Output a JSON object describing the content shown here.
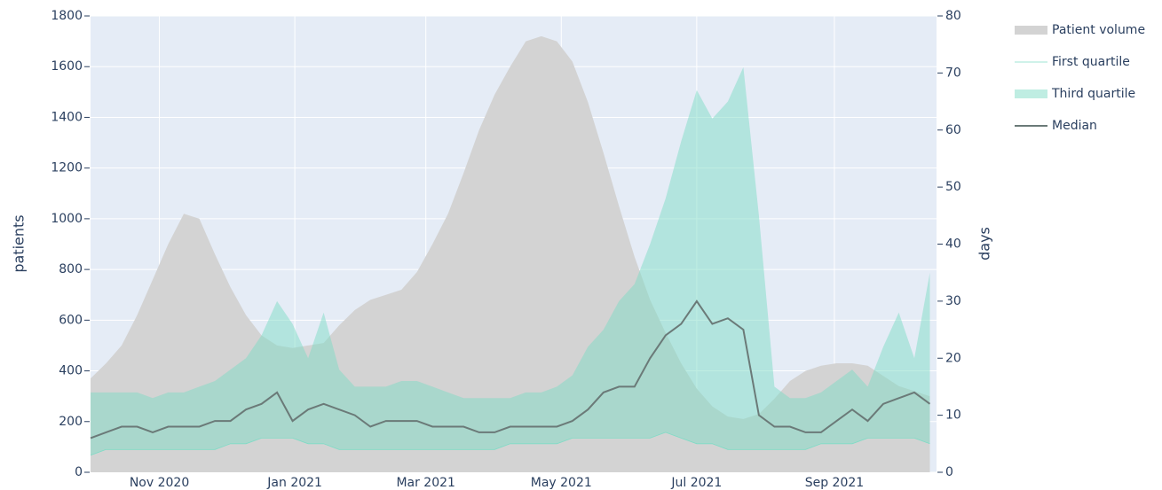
{
  "chart_data": {
    "type": "area",
    "x": [
      "2020-10-01",
      "2020-10-08",
      "2020-10-15",
      "2020-10-22",
      "2020-10-29",
      "2020-11-05",
      "2020-11-12",
      "2020-11-19",
      "2020-11-26",
      "2020-12-03",
      "2020-12-10",
      "2020-12-17",
      "2020-12-24",
      "2020-12-31",
      "2021-01-07",
      "2021-01-14",
      "2021-01-21",
      "2021-01-28",
      "2021-02-04",
      "2021-02-11",
      "2021-02-18",
      "2021-02-25",
      "2021-03-04",
      "2021-03-11",
      "2021-03-18",
      "2021-03-25",
      "2021-04-01",
      "2021-04-08",
      "2021-04-15",
      "2021-04-22",
      "2021-04-29",
      "2021-05-06",
      "2021-05-13",
      "2021-05-20",
      "2021-05-27",
      "2021-06-03",
      "2021-06-10",
      "2021-06-17",
      "2021-06-24",
      "2021-07-01",
      "2021-07-08",
      "2021-07-15",
      "2021-07-22",
      "2021-07-29",
      "2021-08-05",
      "2021-08-12",
      "2021-08-19",
      "2021-08-26",
      "2021-09-02",
      "2021-09-09",
      "2021-09-16",
      "2021-09-23",
      "2021-09-30",
      "2021-10-07",
      "2021-10-14"
    ],
    "series": [
      {
        "name": "Patient volume",
        "color": "#d3d3d3",
        "axis": "y",
        "fill": "tozeroy",
        "values": [
          370,
          430,
          500,
          620,
          760,
          900,
          1020,
          1000,
          860,
          730,
          620,
          540,
          500,
          490,
          500,
          510,
          580,
          640,
          680,
          700,
          720,
          790,
          900,
          1020,
          1180,
          1350,
          1490,
          1600,
          1700,
          1720,
          1700,
          1620,
          1460,
          1260,
          1050,
          850,
          680,
          550,
          430,
          330,
          260,
          220,
          210,
          230,
          290,
          360,
          400,
          420,
          430,
          430,
          420,
          380,
          340,
          320,
          300
        ]
      },
      {
        "name": "First quartile",
        "color": "#7fdcc6",
        "axis": "y2",
        "fill": "none",
        "values": [
          3,
          4,
          4,
          4,
          4,
          4,
          4,
          4,
          4,
          5,
          5,
          6,
          6,
          6,
          5,
          5,
          4,
          4,
          4,
          4,
          4,
          4,
          4,
          4,
          4,
          4,
          4,
          5,
          5,
          5,
          5,
          6,
          6,
          6,
          6,
          6,
          6,
          7,
          6,
          5,
          5,
          4,
          4,
          4,
          4,
          4,
          4,
          5,
          5,
          5,
          6,
          6,
          6,
          6,
          5
        ]
      },
      {
        "name": "Third quartile",
        "color": "#7fdcc6",
        "axis": "y2",
        "fill": "tonexty",
        "values": [
          14,
          14,
          14,
          14,
          13,
          14,
          14,
          15,
          16,
          18,
          20,
          24,
          30,
          26,
          20,
          28,
          18,
          15,
          15,
          15,
          16,
          16,
          15,
          14,
          13,
          13,
          13,
          13,
          14,
          14,
          15,
          17,
          22,
          25,
          30,
          33,
          40,
          48,
          58,
          67,
          62,
          65,
          71,
          45,
          15,
          13,
          13,
          14,
          16,
          18,
          15,
          22,
          28,
          20,
          35
        ]
      },
      {
        "name": "Median",
        "color": "#6b7a78",
        "axis": "y2",
        "fill": "none",
        "values": [
          6,
          7,
          8,
          8,
          7,
          8,
          8,
          8,
          9,
          9,
          11,
          12,
          14,
          9,
          11,
          12,
          11,
          10,
          8,
          9,
          9,
          9,
          8,
          8,
          8,
          7,
          7,
          8,
          8,
          8,
          8,
          9,
          11,
          14,
          15,
          15,
          20,
          24,
          26,
          30,
          26,
          27,
          25,
          10,
          8,
          8,
          7,
          7,
          9,
          11,
          9,
          12,
          13,
          14,
          12
        ]
      }
    ],
    "xlim": [
      "2020-10-01",
      "2021-10-17"
    ],
    "xticks": [
      {
        "value": "2020-11-01",
        "label": "Nov 2020"
      },
      {
        "value": "2021-01-01",
        "label": "Jan 2021"
      },
      {
        "value": "2021-03-01",
        "label": "Mar 2021"
      },
      {
        "value": "2021-05-01",
        "label": "May 2021"
      },
      {
        "value": "2021-07-01",
        "label": "Jul 2021"
      },
      {
        "value": "2021-09-01",
        "label": "Sep 2021"
      }
    ],
    "ylabel": "patients",
    "ylim": [
      0,
      1800
    ],
    "yticks": [
      0,
      200,
      400,
      600,
      800,
      1000,
      1200,
      1400,
      1600,
      1800
    ],
    "y2label": "days",
    "y2lim": [
      0,
      80
    ],
    "y2ticks": [
      0,
      10,
      20,
      30,
      40,
      50,
      60,
      70,
      80
    ],
    "grid": true,
    "legend": "right"
  }
}
